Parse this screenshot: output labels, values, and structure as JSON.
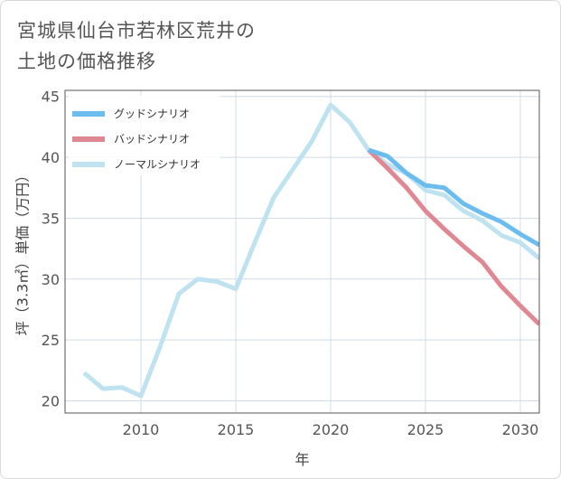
{
  "page": {
    "title_line1": "宮城県仙台市若林区荒井の",
    "title_line2": "土地の価格推移"
  },
  "chart_data": {
    "type": "line",
    "xlabel": "年",
    "ylabel": "坪（3.3㎡）単価（万円）",
    "xlim": [
      2006,
      2031
    ],
    "ylim": [
      19,
      45.5
    ],
    "x_ticks": [
      2010,
      2015,
      2020,
      2025,
      2030
    ],
    "y_ticks": [
      20,
      25,
      30,
      35,
      40,
      45
    ],
    "grid": true,
    "legend_position": "top-left",
    "series": [
      {
        "name": "グッドシナリオ",
        "color": "#6bbdf0",
        "x": [
          2022,
          2023,
          2024,
          2025,
          2026,
          2027,
          2028,
          2029,
          2030,
          2031
        ],
        "values": [
          40.6,
          40.1,
          38.7,
          37.7,
          37.5,
          36.2,
          35.4,
          34.7,
          33.7,
          32.8
        ]
      },
      {
        "name": "バッドシナリオ",
        "color": "#e08891",
        "x": [
          2022,
          2023,
          2024,
          2025,
          2026,
          2027,
          2028,
          2029,
          2030,
          2031
        ],
        "values": [
          40.6,
          39.1,
          37.5,
          35.6,
          34.1,
          32.7,
          31.4,
          29.4,
          27.8,
          26.3
        ]
      },
      {
        "name": "ノーマルシナリオ",
        "color": "#bfe2f0",
        "x": [
          2007,
          2008,
          2009,
          2010,
          2011,
          2012,
          2013,
          2014,
          2015,
          2016,
          2017,
          2018,
          2019,
          2020,
          2021,
          2022,
          2023,
          2024,
          2025,
          2026,
          2027,
          2028,
          2029,
          2030,
          2031
        ],
        "values": [
          22.3,
          21.0,
          21.1,
          20.4,
          24.4,
          28.8,
          30.0,
          29.8,
          29.2,
          33.0,
          36.7,
          39.0,
          41.3,
          44.3,
          42.9,
          40.6,
          39.4,
          38.7,
          37.3,
          36.9,
          35.6,
          34.8,
          33.6,
          33.0,
          31.7
        ]
      }
    ]
  }
}
